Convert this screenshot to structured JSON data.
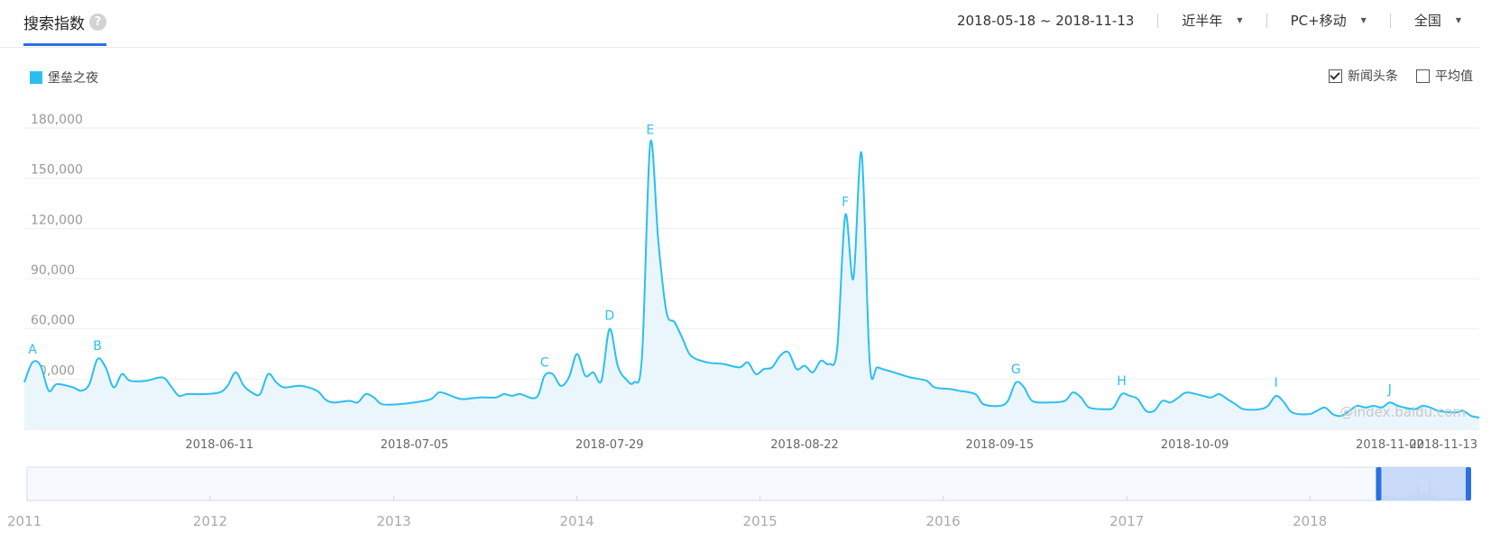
{
  "header": {
    "title": "搜索指数",
    "help_icon": "?",
    "date_range": "2018-05-18 ~ 2018-11-13",
    "period": "近半年",
    "device": "PC+移动",
    "region": "全国",
    "dropdown_icon": "caret-down"
  },
  "legend": {
    "label": "堡垒之夜",
    "color": "#2bbff0"
  },
  "toggles": {
    "news": {
      "label": "新闻头条",
      "checked": true
    },
    "average": {
      "label": "平均值",
      "checked": false
    }
  },
  "watermark": "@index.baidu.com",
  "colors": {
    "accent": "#2c6fe0",
    "series": "#2bbff0",
    "grid": "#eeeeee",
    "axis_text": "#999999"
  },
  "chart_data": {
    "type": "area",
    "title": "",
    "xlabel": "",
    "ylabel": "",
    "ylim": [
      0,
      180000
    ],
    "grid": true,
    "legend_position": "top-left",
    "x_range": [
      "2018-05-18",
      "2018-11-13"
    ],
    "y_ticks": [
      {
        "value": 30000,
        "label": "30,000"
      },
      {
        "value": 60000,
        "label": "60,000"
      },
      {
        "value": 90000,
        "label": "90,000"
      },
      {
        "value": 120000,
        "label": "120,000"
      },
      {
        "value": 150000,
        "label": "150,000"
      },
      {
        "value": 180000,
        "label": "180,000"
      }
    ],
    "x_ticks": [
      "2018-06-11",
      "2018-07-05",
      "2018-07-29",
      "2018-08-22",
      "2018-09-15",
      "2018-10-09",
      "2018-11-02",
      "2018-11-13"
    ],
    "series": [
      {
        "name": "堡垒之夜",
        "points": [
          [
            "2018-05-18",
            28000
          ],
          [
            "2018-05-19",
            40000
          ],
          [
            "2018-05-20",
            38000
          ],
          [
            "2018-05-21",
            23000
          ],
          [
            "2018-05-22",
            27000
          ],
          [
            "2018-05-24",
            25000
          ],
          [
            "2018-05-25",
            23000
          ],
          [
            "2018-05-26",
            27000
          ],
          [
            "2018-05-27",
            42000
          ],
          [
            "2018-05-28",
            37000
          ],
          [
            "2018-05-29",
            25000
          ],
          [
            "2018-05-30",
            33000
          ],
          [
            "2018-05-31",
            29000
          ],
          [
            "2018-06-02",
            29000
          ],
          [
            "2018-06-04",
            31000
          ],
          [
            "2018-06-05",
            26000
          ],
          [
            "2018-06-06",
            20000
          ],
          [
            "2018-06-07",
            21000
          ],
          [
            "2018-06-09",
            21000
          ],
          [
            "2018-06-11",
            22000
          ],
          [
            "2018-06-12",
            26000
          ],
          [
            "2018-06-13",
            34000
          ],
          [
            "2018-06-14",
            26000
          ],
          [
            "2018-06-15",
            22000
          ],
          [
            "2018-06-16",
            21000
          ],
          [
            "2018-06-17",
            33000
          ],
          [
            "2018-06-18",
            28000
          ],
          [
            "2018-06-19",
            25000
          ],
          [
            "2018-06-21",
            26000
          ],
          [
            "2018-06-23",
            23000
          ],
          [
            "2018-06-24",
            18000
          ],
          [
            "2018-06-25",
            16000
          ],
          [
            "2018-06-27",
            17000
          ],
          [
            "2018-06-28",
            16000
          ],
          [
            "2018-06-29",
            21000
          ],
          [
            "2018-06-30",
            19000
          ],
          [
            "2018-07-01",
            15000
          ],
          [
            "2018-07-03",
            15000
          ],
          [
            "2018-07-05",
            16000
          ],
          [
            "2018-07-07",
            18000
          ],
          [
            "2018-07-08",
            22000
          ],
          [
            "2018-07-09",
            21000
          ],
          [
            "2018-07-10",
            19000
          ],
          [
            "2018-07-11",
            18000
          ],
          [
            "2018-07-13",
            19000
          ],
          [
            "2018-07-15",
            19000
          ],
          [
            "2018-07-16",
            21000
          ],
          [
            "2018-07-17",
            20000
          ],
          [
            "2018-07-18",
            21000
          ],
          [
            "2018-07-20",
            19000
          ],
          [
            "2018-07-21",
            32000
          ],
          [
            "2018-07-22",
            33000
          ],
          [
            "2018-07-23",
            26000
          ],
          [
            "2018-07-24",
            31000
          ],
          [
            "2018-07-25",
            45000
          ],
          [
            "2018-07-26",
            32000
          ],
          [
            "2018-07-27",
            34000
          ],
          [
            "2018-07-28",
            29000
          ],
          [
            "2018-07-29",
            60000
          ],
          [
            "2018-07-30",
            38000
          ],
          [
            "2018-07-31",
            30000
          ],
          [
            "2018-08-01",
            28000
          ],
          [
            "2018-08-02",
            44000
          ],
          [
            "2018-08-03",
            171000
          ],
          [
            "2018-08-04",
            112000
          ],
          [
            "2018-08-05",
            70000
          ],
          [
            "2018-08-06",
            64000
          ],
          [
            "2018-08-07",
            54000
          ],
          [
            "2018-08-08",
            44000
          ],
          [
            "2018-08-10",
            40000
          ],
          [
            "2018-08-12",
            39000
          ],
          [
            "2018-08-14",
            37000
          ],
          [
            "2018-08-15",
            40000
          ],
          [
            "2018-08-16",
            33000
          ],
          [
            "2018-08-17",
            36000
          ],
          [
            "2018-08-18",
            37000
          ],
          [
            "2018-08-19",
            44000
          ],
          [
            "2018-08-20",
            46000
          ],
          [
            "2018-08-21",
            36000
          ],
          [
            "2018-08-22",
            38000
          ],
          [
            "2018-08-23",
            34000
          ],
          [
            "2018-08-24",
            41000
          ],
          [
            "2018-08-25",
            39000
          ],
          [
            "2018-08-26",
            48000
          ],
          [
            "2018-08-27",
            128000
          ],
          [
            "2018-08-28",
            90000
          ],
          [
            "2018-08-29",
            165000
          ],
          [
            "2018-08-30",
            40000
          ],
          [
            "2018-08-31",
            37000
          ],
          [
            "2018-09-02",
            34000
          ],
          [
            "2018-09-04",
            31000
          ],
          [
            "2018-09-06",
            29000
          ],
          [
            "2018-09-07",
            25000
          ],
          [
            "2018-09-09",
            24000
          ],
          [
            "2018-09-10",
            23000
          ],
          [
            "2018-09-12",
            21000
          ],
          [
            "2018-09-13",
            15000
          ],
          [
            "2018-09-15",
            14000
          ],
          [
            "2018-09-16",
            17000
          ],
          [
            "2018-09-17",
            28000
          ],
          [
            "2018-09-18",
            25000
          ],
          [
            "2018-09-19",
            17000
          ],
          [
            "2018-09-21",
            16000
          ],
          [
            "2018-09-23",
            17000
          ],
          [
            "2018-09-24",
            22000
          ],
          [
            "2018-09-25",
            19000
          ],
          [
            "2018-09-26",
            13000
          ],
          [
            "2018-09-28",
            12000
          ],
          [
            "2018-09-29",
            13000
          ],
          [
            "2018-09-30",
            21000
          ],
          [
            "2018-10-01",
            20000
          ],
          [
            "2018-10-02",
            18000
          ],
          [
            "2018-10-03",
            11000
          ],
          [
            "2018-10-04",
            11000
          ],
          [
            "2018-10-05",
            17000
          ],
          [
            "2018-10-06",
            16000
          ],
          [
            "2018-10-07",
            19000
          ],
          [
            "2018-10-08",
            22000
          ],
          [
            "2018-10-10",
            20000
          ],
          [
            "2018-10-11",
            19000
          ],
          [
            "2018-10-12",
            21000
          ],
          [
            "2018-10-13",
            18000
          ],
          [
            "2018-10-14",
            15000
          ],
          [
            "2018-10-15",
            12000
          ],
          [
            "2018-10-17",
            12000
          ],
          [
            "2018-10-18",
            14000
          ],
          [
            "2018-10-19",
            20000
          ],
          [
            "2018-10-20",
            16000
          ],
          [
            "2018-10-21",
            10000
          ],
          [
            "2018-10-23",
            9000
          ],
          [
            "2018-10-24",
            11000
          ],
          [
            "2018-10-25",
            13000
          ],
          [
            "2018-10-26",
            9000
          ],
          [
            "2018-10-27",
            8000
          ],
          [
            "2018-10-28",
            11000
          ],
          [
            "2018-10-29",
            14000
          ],
          [
            "2018-10-30",
            13000
          ],
          [
            "2018-10-31",
            14000
          ],
          [
            "2018-11-01",
            13000
          ],
          [
            "2018-11-02",
            16000
          ],
          [
            "2018-11-03",
            14000
          ],
          [
            "2018-11-05",
            12000
          ],
          [
            "2018-11-06",
            14000
          ],
          [
            "2018-11-07",
            13000
          ],
          [
            "2018-11-08",
            11000
          ],
          [
            "2018-11-10",
            10000
          ],
          [
            "2018-11-11",
            11000
          ],
          [
            "2018-11-12",
            8000
          ],
          [
            "2018-11-13",
            7000
          ]
        ]
      }
    ],
    "annotations": [
      {
        "label": "A",
        "x": "2018-05-19",
        "y": 40000
      },
      {
        "label": "B",
        "x": "2018-05-27",
        "y": 42000
      },
      {
        "label": "C",
        "x": "2018-07-21",
        "y": 32000
      },
      {
        "label": "D",
        "x": "2018-07-29",
        "y": 60000
      },
      {
        "label": "E",
        "x": "2018-08-03",
        "y": 171000
      },
      {
        "label": "F",
        "x": "2018-08-27",
        "y": 128000
      },
      {
        "label": "G",
        "x": "2018-09-17",
        "y": 28000
      },
      {
        "label": "H",
        "x": "2018-09-30",
        "y": 21000
      },
      {
        "label": "I",
        "x": "2018-10-19",
        "y": 20000
      },
      {
        "label": "J",
        "x": "2018-11-02",
        "y": 16000
      }
    ],
    "overview": {
      "years": [
        "2011",
        "2012",
        "2013",
        "2014",
        "2015",
        "2016",
        "2017",
        "2018"
      ],
      "range": [
        "2011-01-01",
        "2018-11-13"
      ],
      "selection": [
        "2018-05-18",
        "2018-11-13"
      ]
    }
  }
}
